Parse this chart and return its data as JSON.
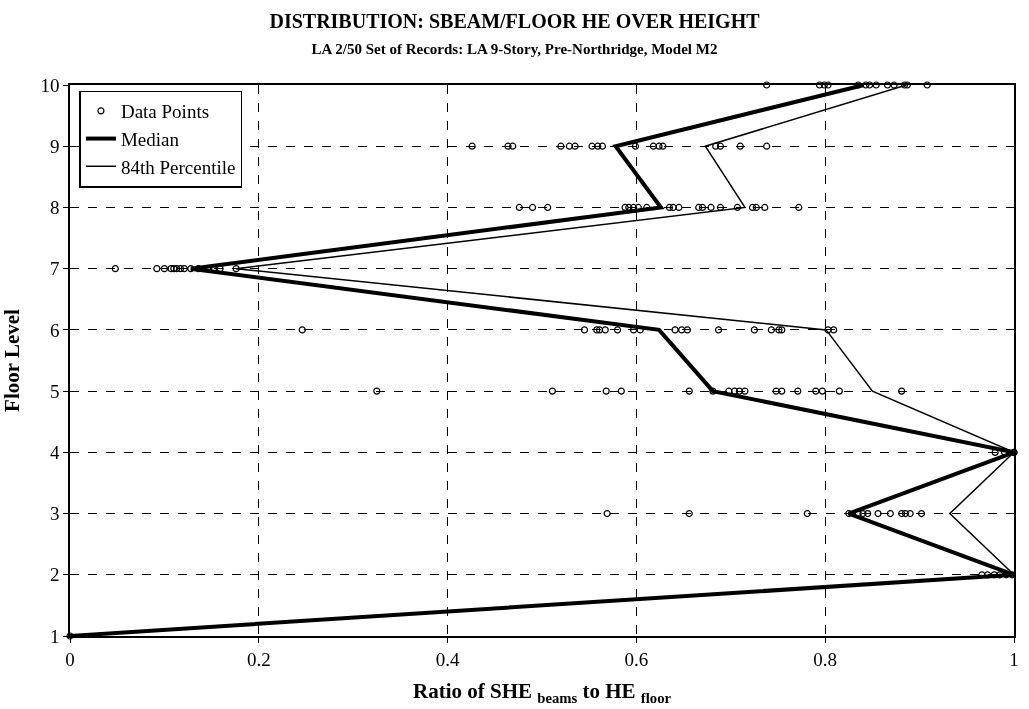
{
  "chart_data": {
    "type": "scatter",
    "title": "DISTRIBUTION: SBEAM/FLOOR HE OVER HEIGHT",
    "subtitle": "LA 2/50 Set of Records: LA 9-Story, Pre-Northridge, Model M2",
    "xlabel": "Ratio of SHE $_{beams}$ to HE $_{floor}$",
    "ylabel": "Floor Level",
    "xlim": [
      0,
      1
    ],
    "xticks": [
      0,
      0.2,
      0.4,
      0.6,
      0.8,
      1
    ],
    "ylim": [
      1,
      10
    ],
    "yticks": [
      1,
      2,
      3,
      4,
      5,
      6,
      7,
      8,
      9,
      10
    ],
    "grid": true,
    "legend": "top left",
    "series": [
      {
        "name": "Data Points",
        "type": "scatter",
        "marker": "circle",
        "color": "#000000",
        "x": [
          0,
          0.966,
          0.972,
          0.979,
          0.985,
          0.992,
          0.998,
          0.569,
          0.656,
          0.781,
          0.825,
          0.835,
          0.84,
          0.845,
          0.856,
          0.869,
          0.881,
          0.885,
          0.89,
          0.902,
          0.98,
          0.99,
          1.0,
          1.0,
          0.325,
          0.511,
          0.568,
          0.584,
          0.656,
          0.681,
          0.698,
          0.704,
          0.709,
          0.715,
          0.748,
          0.754,
          0.771,
          0.79,
          0.797,
          0.815,
          0.881,
          0.246,
          0.545,
          0.558,
          0.561,
          0.567,
          0.58,
          0.597,
          0.604,
          0.641,
          0.648,
          0.654,
          0.687,
          0.725,
          0.743,
          0.751,
          0.754,
          0.803,
          0.809,
          0.048,
          0.092,
          0.1,
          0.107,
          0.11,
          0.113,
          0.117,
          0.121,
          0.128,
          0.136,
          0.147,
          0.152,
          0.159,
          0.176,
          0.476,
          0.49,
          0.506,
          0.588,
          0.592,
          0.597,
          0.602,
          0.611,
          0.635,
          0.639,
          0.645,
          0.666,
          0.67,
          0.679,
          0.689,
          0.707,
          0.723,
          0.727,
          0.736,
          0.772,
          0.426,
          0.464,
          0.469,
          0.52,
          0.529,
          0.535,
          0.553,
          0.559,
          0.564,
          0.599,
          0.618,
          0.624,
          0.628,
          0.684,
          0.689,
          0.71,
          0.738,
          0.738,
          0.794,
          0.799,
          0.803,
          0.835,
          0.843,
          0.847,
          0.854,
          0.866,
          0.873,
          0.884,
          0.887,
          0.908
        ],
        "values": [
          1,
          2,
          2,
          2,
          2,
          2,
          2,
          3,
          3,
          3,
          3,
          3,
          3,
          3,
          3,
          3,
          3,
          3,
          3,
          3,
          4,
          4,
          4,
          4,
          5,
          5,
          5,
          5,
          5,
          5,
          5,
          5,
          5,
          5,
          5,
          5,
          5,
          5,
          5,
          5,
          5,
          6,
          6,
          6,
          6,
          6,
          6,
          6,
          6,
          6,
          6,
          6,
          6,
          6,
          6,
          6,
          6,
          6,
          6,
          7,
          7,
          7,
          7,
          7,
          7,
          7,
          7,
          7,
          7,
          7,
          7,
          7,
          7,
          8,
          8,
          8,
          8,
          8,
          8,
          8,
          8,
          8,
          8,
          8,
          8,
          8,
          8,
          8,
          8,
          8,
          8,
          8,
          8,
          9,
          9,
          9,
          9,
          9,
          9,
          9,
          9,
          9,
          9,
          9,
          9,
          9,
          9,
          9,
          9,
          9,
          10,
          10,
          10,
          10,
          10,
          10,
          10,
          10,
          10,
          10,
          10,
          10,
          10
        ]
      },
      {
        "name": "Median",
        "type": "line",
        "marker": "none",
        "line_style": "solid",
        "color": "#000000",
        "x": [
          0,
          1.0,
          0.825,
          1.0,
          0.681,
          0.624,
          0.128,
          0.626,
          0.578,
          0.841
        ],
        "values": [
          1,
          2,
          3,
          4,
          5,
          6,
          7,
          8,
          9,
          10
        ]
      },
      {
        "name": "84th Percentile",
        "type": "line",
        "marker": "none",
        "line_style": "solid",
        "color": "#000000",
        "x": [
          0,
          1.0,
          0.932,
          1.0,
          0.85,
          0.801,
          0.176,
          0.715,
          0.673,
          0.886
        ],
        "values": [
          1,
          2,
          3,
          4,
          5,
          6,
          7,
          8,
          9,
          10
        ]
      }
    ]
  }
}
